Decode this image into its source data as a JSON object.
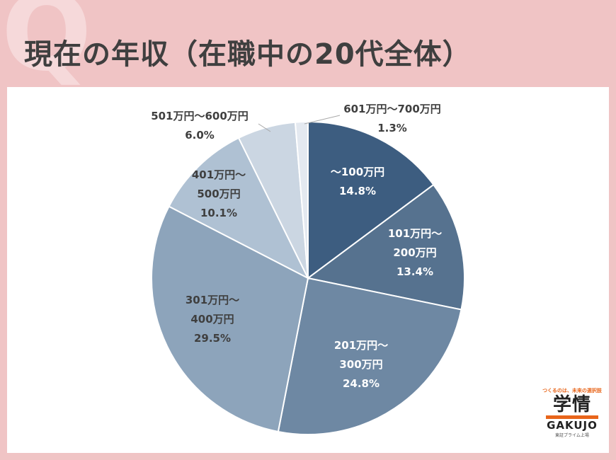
{
  "page": {
    "title": "現在の年収（在職中の20代全体）",
    "bg_mark": "Q"
  },
  "colors": {
    "background": "#f0c4c5",
    "card": "#ffffff",
    "title_text": "#3f3f3f"
  },
  "chart_data": {
    "type": "pie",
    "title": "",
    "start": "top (12 o'clock), clockwise",
    "slices": [
      {
        "label": [
          "～100万円"
        ],
        "pct_label": "14.8%",
        "value": 14.8,
        "color": "#3d5d80",
        "text_color": "#ffffff"
      },
      {
        "label": [
          "101万円～",
          "200万円"
        ],
        "pct_label": "13.4%",
        "value": 13.4,
        "color": "#56728f",
        "text_color": "#ffffff"
      },
      {
        "label": [
          "201万円～",
          "300万円"
        ],
        "pct_label": "24.8%",
        "value": 24.8,
        "color": "#6e88a3",
        "text_color": "#ffffff"
      },
      {
        "label": [
          "301万円～",
          "400万円"
        ],
        "pct_label": "29.5%",
        "value": 29.5,
        "color": "#8da4bb",
        "text_color": "#3f3f3f"
      },
      {
        "label": [
          "401万円～",
          "500万円"
        ],
        "pct_label": "10.1%",
        "value": 10.1,
        "color": "#afc1d3",
        "text_color": "#3f3f3f"
      },
      {
        "label": [
          "501万円～600万円"
        ],
        "pct_label": "6.0%",
        "value": 6.0,
        "color": "#cbd6e2",
        "text_color": "#3f3f3f"
      },
      {
        "label": [
          "601万円～700万円"
        ],
        "pct_label": "1.3%",
        "value": 1.3,
        "color": "#e4e9f0",
        "text_color": "#3f3f3f"
      }
    ]
  },
  "logo": {
    "tagline": "つくるのは、未来の選択肢",
    "mark": "学情",
    "name": "GAKUJO",
    "subline": "東証プライム上場"
  }
}
